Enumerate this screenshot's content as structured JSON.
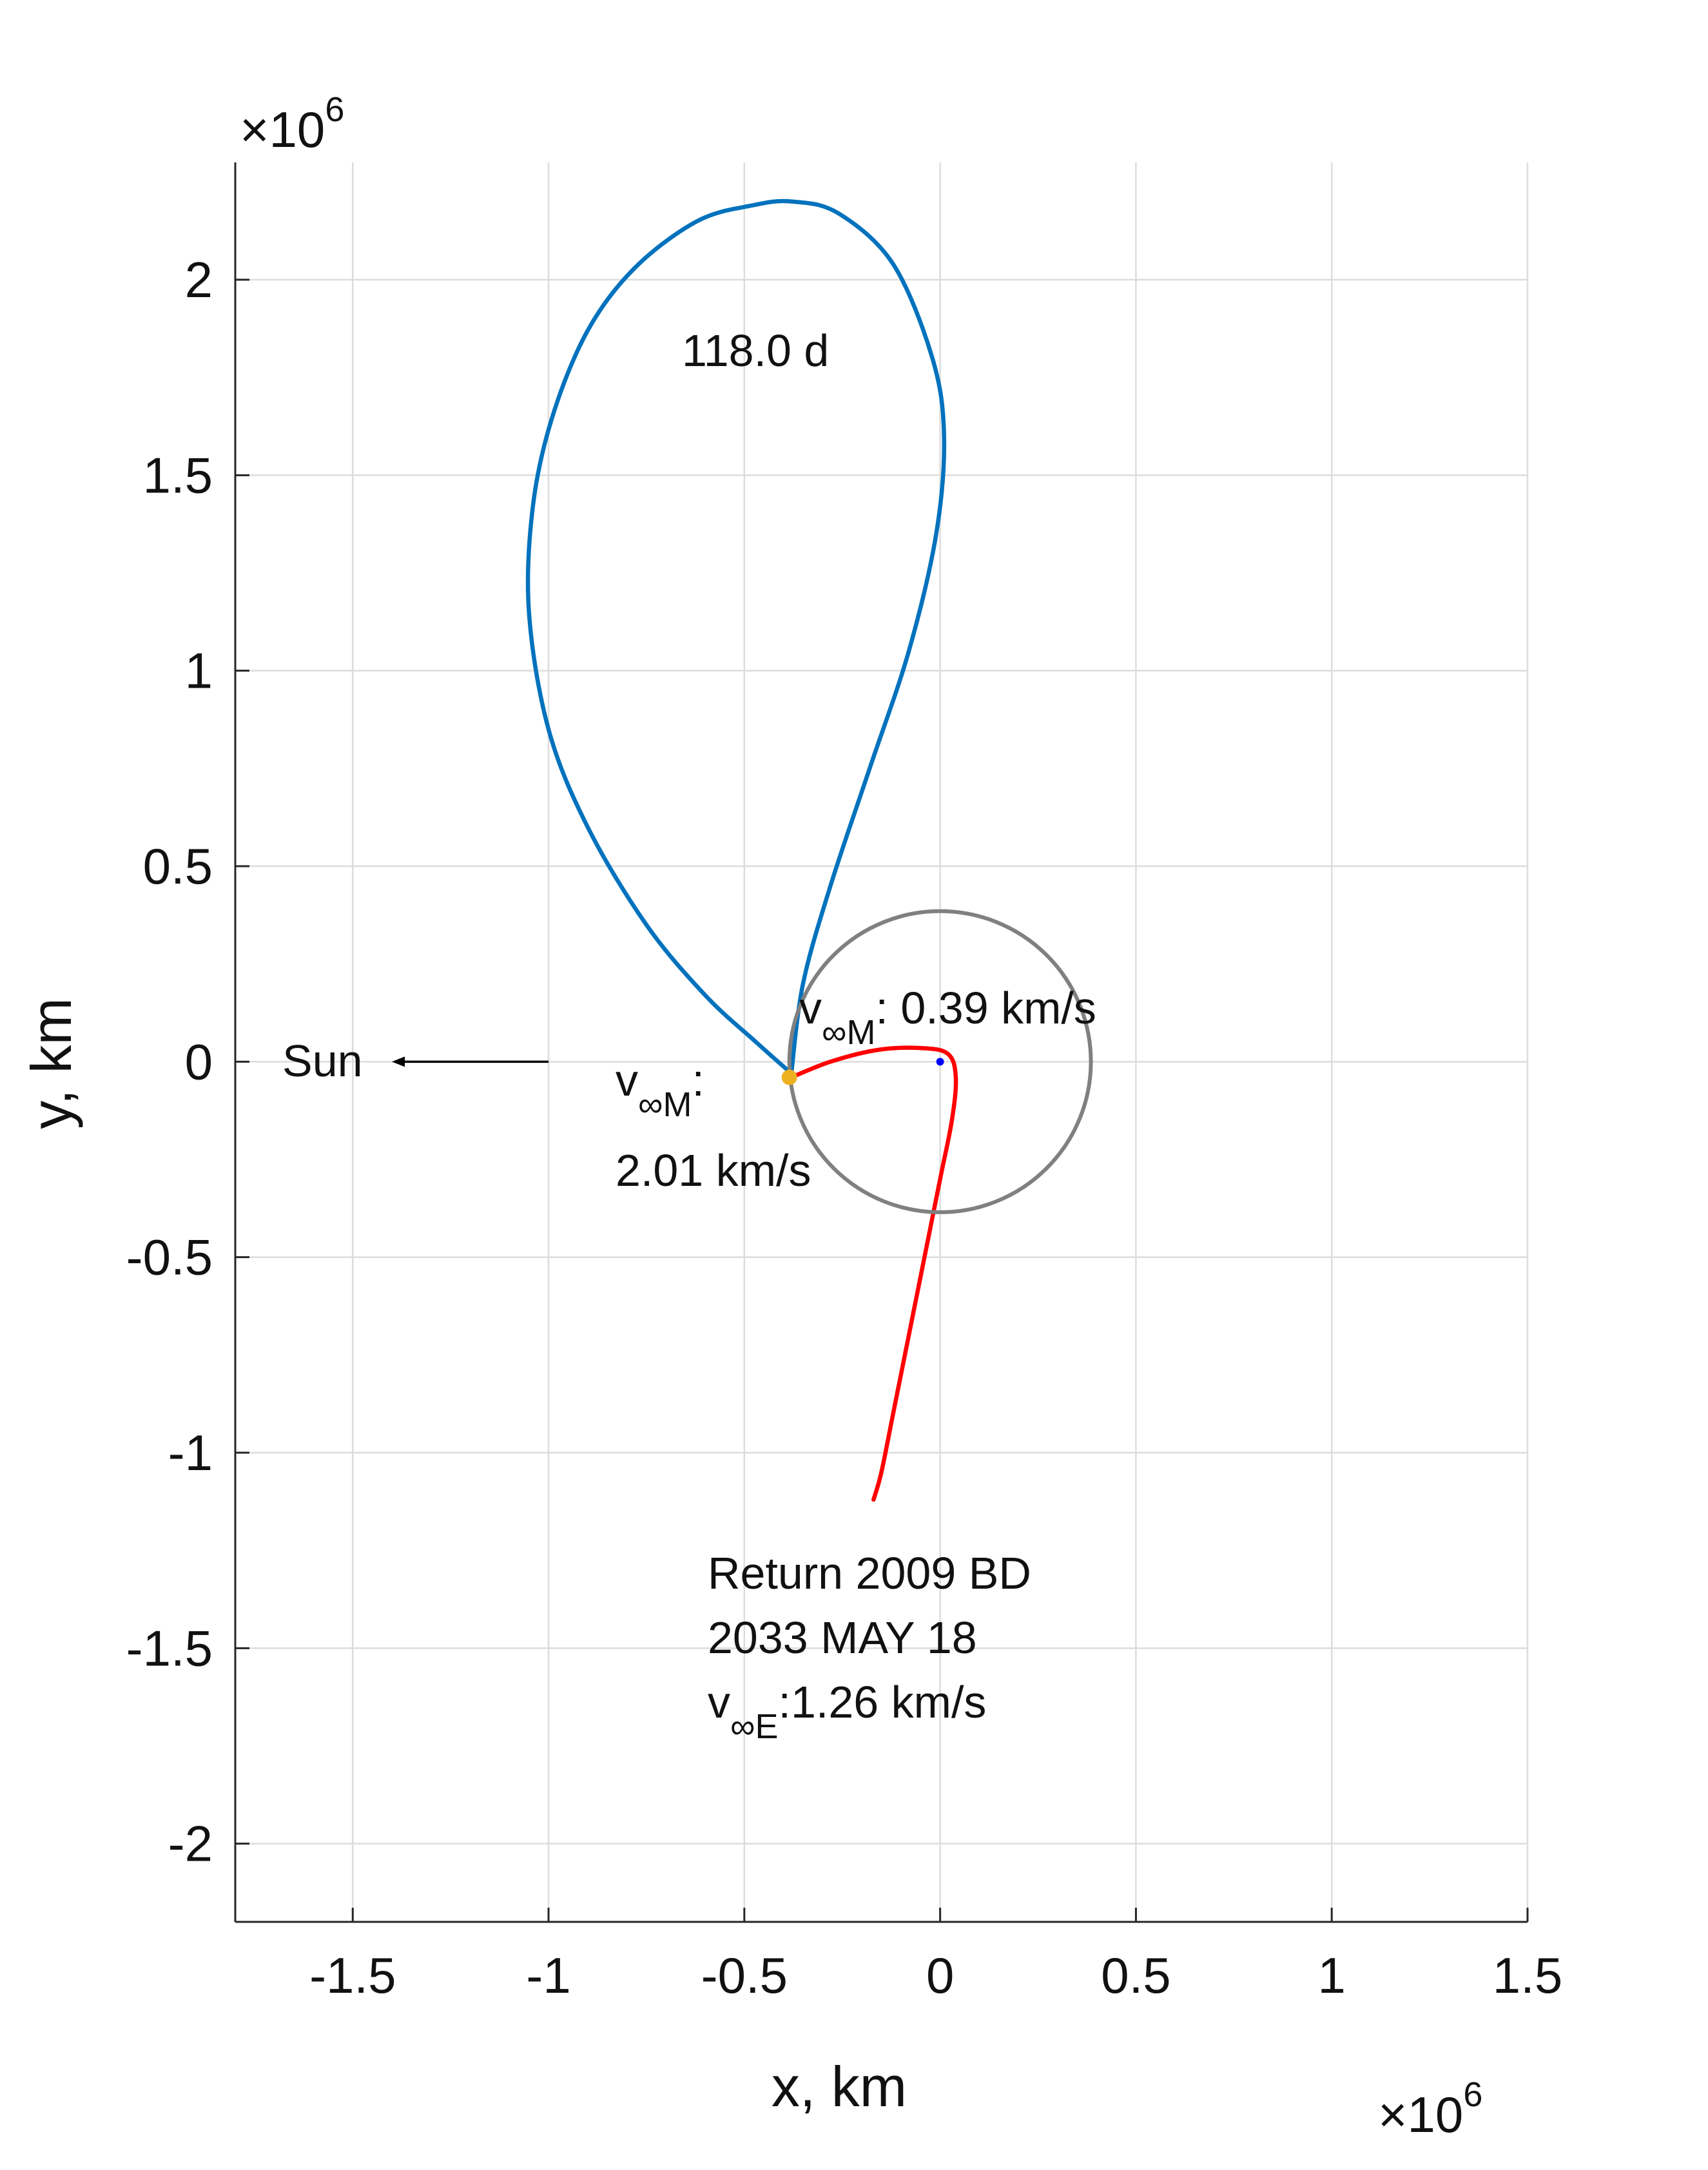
{
  "chart_data": {
    "type": "line",
    "xlabel": "x, km",
    "ylabel": "y, km",
    "x_exponent_label": "×10^6",
    "y_exponent_label": "×10^6",
    "xlim": [
      -1.8,
      1.5
    ],
    "ylim": [
      -2.2,
      2.3
    ],
    "grid": true,
    "x_ticks": [
      -1.5,
      -1,
      -0.5,
      0,
      0.5,
      1,
      1.5
    ],
    "x_tick_labels": [
      "-1.5",
      "-1",
      "-0.5",
      "0",
      "0.5",
      "1",
      "1.5"
    ],
    "y_ticks": [
      -2,
      -1.5,
      -1,
      -0.5,
      0,
      0.5,
      1,
      1.5,
      2
    ],
    "y_tick_labels": [
      "-2",
      "-1.5",
      "-1",
      "-0.5",
      "0",
      "0.5",
      "1",
      "1.5",
      "2"
    ],
    "series": [
      {
        "color": "#0072BD",
        "x": [
          -0.38,
          -0.47,
          -0.6,
          -0.75,
          -0.9,
          -1.0,
          -1.05,
          -1.04,
          -0.99,
          -0.9,
          -0.78,
          -0.62,
          -0.48,
          -0.38,
          -0.26,
          -0.12,
          -0.02,
          0.01,
          -0.01,
          -0.08,
          -0.18,
          -0.28,
          -0.35,
          -0.38
        ],
        "y": [
          -0.03,
          0.05,
          0.17,
          0.35,
          0.6,
          0.85,
          1.15,
          1.42,
          1.65,
          1.87,
          2.03,
          2.15,
          2.19,
          2.2,
          2.17,
          2.04,
          1.8,
          1.6,
          1.35,
          1.05,
          0.75,
          0.45,
          0.2,
          -0.03
        ]
      },
      {
        "color": "#FF0000",
        "x": [
          -0.38,
          -0.28,
          -0.16,
          -0.05,
          0.02,
          0.04,
          0.03,
          0.0,
          -0.04,
          -0.08,
          -0.12,
          -0.15,
          -0.17
        ],
        "y": [
          -0.04,
          -0.0,
          0.03,
          0.035,
          0.02,
          -0.04,
          -0.15,
          -0.3,
          -0.5,
          -0.7,
          -0.9,
          -1.05,
          -1.12
        ]
      },
      {
        "color": "#808080",
        "circle": true,
        "center": [
          0,
          0
        ],
        "radius": 0.385
      }
    ],
    "markers": [
      {
        "x": 0.0,
        "y": 0.0,
        "color": "#0000FF"
      },
      {
        "x": -0.385,
        "y": -0.04,
        "color": "#EDB120"
      }
    ],
    "arrow": {
      "from": [
        -1.0,
        0.0
      ],
      "to": [
        -1.4,
        0.0
      ],
      "color": "#000000"
    },
    "annotations": {
      "loop_duration": "118.0 d",
      "sun": "Sun",
      "vinf_upper_v": "v",
      "vinf_upper_sub": "∞M",
      "vinf_upper_val": ": 0.39 km/s",
      "vinf_lower_v": "v",
      "vinf_lower_sub": "∞M",
      "vinf_lower_colon": ":",
      "vinf_lower_val": "2.01 km/s",
      "return_line1": "Return 2009 BD",
      "return_line2": "2033 MAY 18",
      "return_v": "v",
      "return_sub": "∞E",
      "return_val": ":1.26 km/s"
    }
  }
}
